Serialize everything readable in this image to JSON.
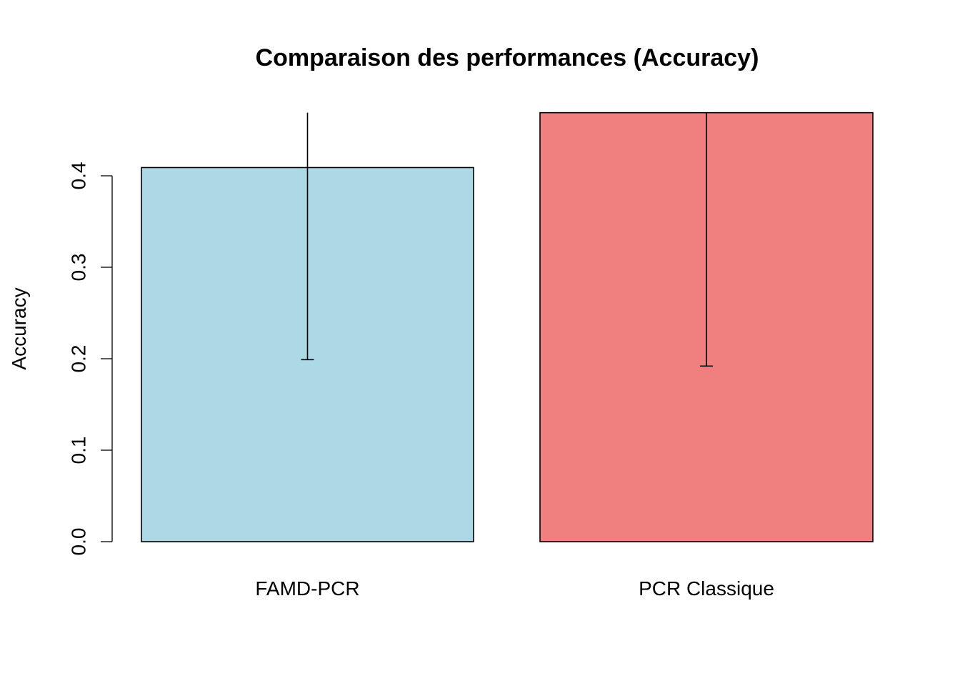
{
  "chart_data": {
    "type": "bar",
    "title": "Comparaison des performances (Accuracy)",
    "xlabel": "",
    "ylabel": "Accuracy",
    "categories": [
      "FAMD-PCR",
      "PCR Classique"
    ],
    "values": [
      0.409,
      0.469
    ],
    "error_lower": [
      0.199,
      0.192
    ],
    "error_upper": [
      0.469,
      0.469
    ],
    "colors": [
      "#ADD8E6",
      "#F08080"
    ],
    "yticks": [
      0.0,
      0.1,
      0.2,
      0.3,
      0.4
    ],
    "ytick_labels": [
      "0.0",
      "0.1",
      "0.2",
      "0.3",
      "0.4"
    ],
    "ylim": [
      0,
      0.469
    ],
    "grid": false
  }
}
